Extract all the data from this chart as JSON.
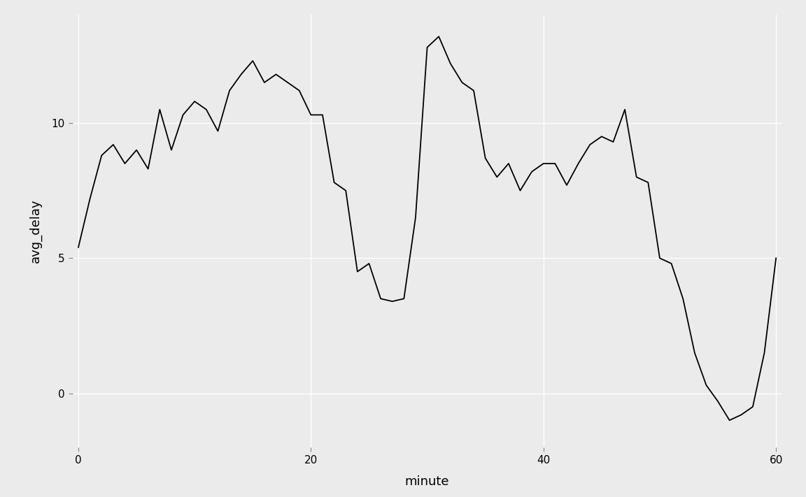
{
  "x": [
    0,
    1,
    2,
    3,
    4,
    5,
    6,
    7,
    8,
    9,
    10,
    11,
    12,
    13,
    14,
    15,
    16,
    17,
    18,
    19,
    20,
    21,
    22,
    23,
    24,
    25,
    26,
    27,
    28,
    29,
    30,
    31,
    32,
    33,
    34,
    35,
    36,
    37,
    38,
    39,
    40,
    41,
    42,
    43,
    44,
    45,
    46,
    47,
    48,
    49,
    50,
    51,
    52,
    53,
    54,
    55,
    56,
    57,
    58,
    59,
    60
  ],
  "y": [
    5.4,
    7.2,
    8.8,
    9.2,
    8.5,
    9.0,
    8.3,
    10.5,
    9.0,
    10.3,
    10.8,
    10.5,
    9.7,
    11.2,
    11.8,
    12.3,
    11.5,
    11.8,
    11.5,
    11.2,
    10.3,
    10.3,
    7.8,
    7.5,
    4.5,
    4.8,
    3.5,
    3.4,
    3.5,
    6.5,
    12.8,
    13.2,
    12.2,
    11.5,
    11.2,
    8.7,
    8.0,
    8.5,
    7.5,
    8.2,
    8.5,
    8.5,
    7.7,
    8.5,
    9.2,
    9.5,
    9.3,
    10.5,
    8.0,
    7.8,
    5.0,
    4.8,
    3.5,
    1.5,
    0.3,
    -0.3,
    -1.0,
    -0.8,
    -0.5,
    1.5,
    5.0
  ],
  "xlabel": "minute",
  "ylabel": "avg_delay",
  "xlim": [
    -0.5,
    60.5
  ],
  "ylim": [
    -2.0,
    14.0
  ],
  "xticks": [
    0,
    20,
    40,
    60
  ],
  "yticks": [
    0,
    5,
    10
  ],
  "background_color": "#EBEBEB",
  "grid_color": "#FFFFFF",
  "line_color": "#000000",
  "line_width": 1.3,
  "axis_label_fontsize": 13,
  "tick_label_fontsize": 11
}
